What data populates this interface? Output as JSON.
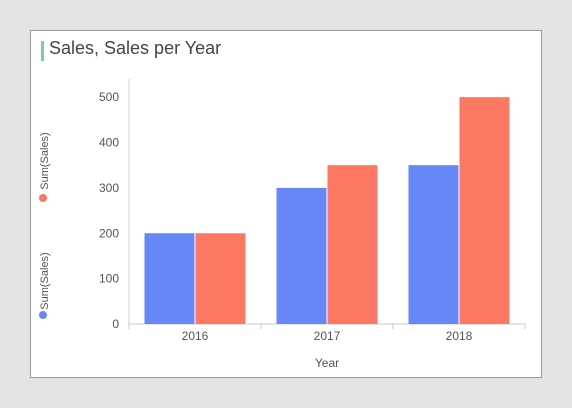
{
  "chart_data": {
    "type": "bar",
    "title": "Sales, Sales per Year",
    "xlabel": "Year",
    "ylabel": "",
    "categories": [
      "2016",
      "2017",
      "2018"
    ],
    "series": [
      {
        "name": "Sum(Sales)",
        "color": "#6688f7",
        "values": [
          200,
          300,
          350
        ]
      },
      {
        "name": "Sum(Sales)",
        "color": "#fd7763",
        "values": [
          200,
          350,
          500
        ]
      }
    ],
    "y_ticks": [
      0,
      100,
      200,
      300,
      400,
      500
    ],
    "ylim": [
      0,
      540
    ],
    "grid": false,
    "legend": "left, vertical"
  }
}
